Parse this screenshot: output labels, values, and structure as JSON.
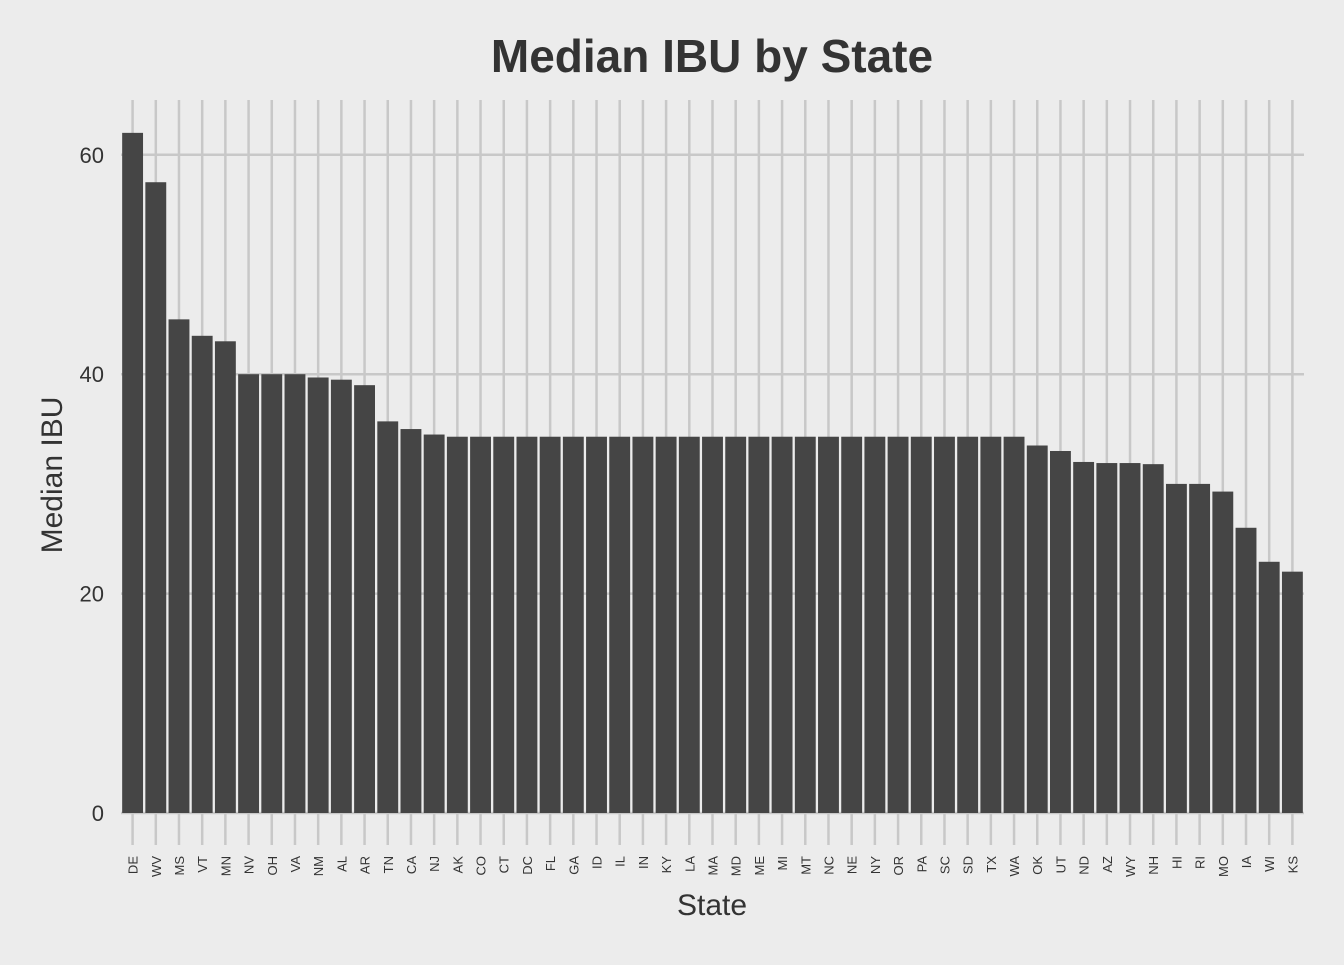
{
  "chart_data": {
    "type": "bar",
    "title": "Median IBU by State",
    "xlabel": "State",
    "ylabel": "Median IBU",
    "ylim": [
      0,
      65
    ],
    "yticks": [
      0,
      20,
      40,
      60
    ],
    "grid": true,
    "legend": "none",
    "colors": {
      "bar": "#454545",
      "background": "#ececec",
      "grid": "#c8c8c8",
      "text": "#333333"
    },
    "categories": [
      "DE",
      "WV",
      "MS",
      "VT",
      "MN",
      "NV",
      "OH",
      "VA",
      "NM",
      "AL",
      "AR",
      "TN",
      "CA",
      "NJ",
      "AK",
      "CO",
      "CT",
      "DC",
      "FL",
      "GA",
      "ID",
      "IL",
      "IN",
      "KY",
      "LA",
      "MA",
      "MD",
      "ME",
      "MI",
      "MT",
      "NC",
      "NE",
      "NY",
      "OR",
      "PA",
      "SC",
      "SD",
      "TX",
      "WA",
      "OK",
      "UT",
      "ND",
      "AZ",
      "WY",
      "NH",
      "HI",
      "RI",
      "MO",
      "IA",
      "WI",
      "KS"
    ],
    "values": [
      62,
      57.5,
      45,
      43.5,
      43,
      40,
      40,
      40,
      39.7,
      39.5,
      39,
      35.7,
      35,
      34.5,
      34.3,
      34.3,
      34.3,
      34.3,
      34.3,
      34.3,
      34.3,
      34.3,
      34.3,
      34.3,
      34.3,
      34.3,
      34.3,
      34.3,
      34.3,
      34.3,
      34.3,
      34.3,
      34.3,
      34.3,
      34.3,
      34.3,
      34.3,
      34.3,
      34.3,
      33.5,
      33,
      32,
      31.9,
      31.9,
      31.8,
      30,
      30,
      29.3,
      26,
      22.9,
      22
    ]
  }
}
